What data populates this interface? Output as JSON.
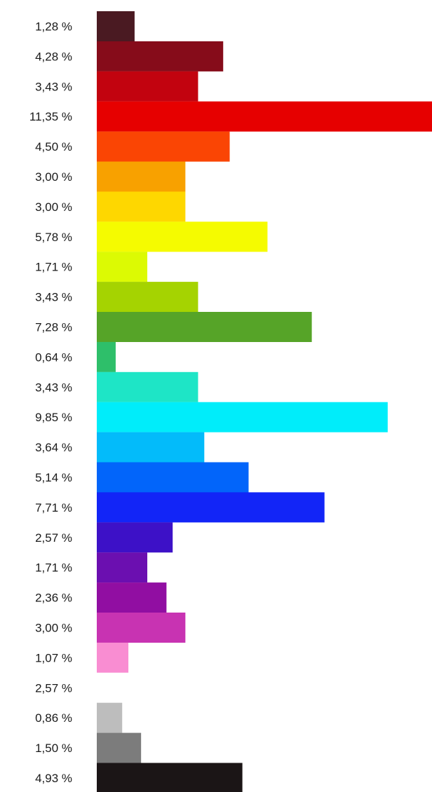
{
  "chart_data": {
    "type": "bar",
    "orientation": "horizontal",
    "title": "",
    "xlabel": "",
    "ylabel": "",
    "xlim": [
      0,
      11.35
    ],
    "grid": false,
    "legend": "none",
    "categories": [
      "1,28 %",
      "4,28 %",
      "3,43 %",
      "11,35 %",
      "4,50 %",
      "3,00 %",
      "3,00 %",
      "5,78 %",
      "1,71 %",
      "3,43 %",
      "7,28 %",
      "0,64 %",
      "3,43 %",
      "9,85 %",
      "3,64 %",
      "5,14 %",
      "7,71 %",
      "2,57 %",
      "1,71 %",
      "2,36 %",
      "3,00 %",
      "1,07 %",
      "2,57 %",
      "0,86 %",
      "1,50 %",
      "4,93 %"
    ],
    "values": [
      1.28,
      4.28,
      3.43,
      11.35,
      4.5,
      3.0,
      3.0,
      5.78,
      1.71,
      3.43,
      7.28,
      0.64,
      3.43,
      9.85,
      3.64,
      5.14,
      7.71,
      2.57,
      1.71,
      2.36,
      3.0,
      1.07,
      2.57,
      0.86,
      1.5,
      4.93
    ],
    "colors": [
      "#4a1a22",
      "#860c1a",
      "#c2030f",
      "#e60000",
      "#fa4504",
      "#f8a100",
      "#fed700",
      "#f5fb00",
      "#dcfa03",
      "#a5d301",
      "#56a428",
      "#2ebf6a",
      "#1ee5c6",
      "#00edfa",
      "#03bbfa",
      "#0265fa",
      "#1225f7",
      "#3d11c7",
      "#6b0fb0",
      "#910ea2",
      "#c833b2",
      "#f98dd2",
      "#ffffff",
      "#bdbdbd",
      "#7c7c7c",
      "#1b1516"
    ]
  }
}
